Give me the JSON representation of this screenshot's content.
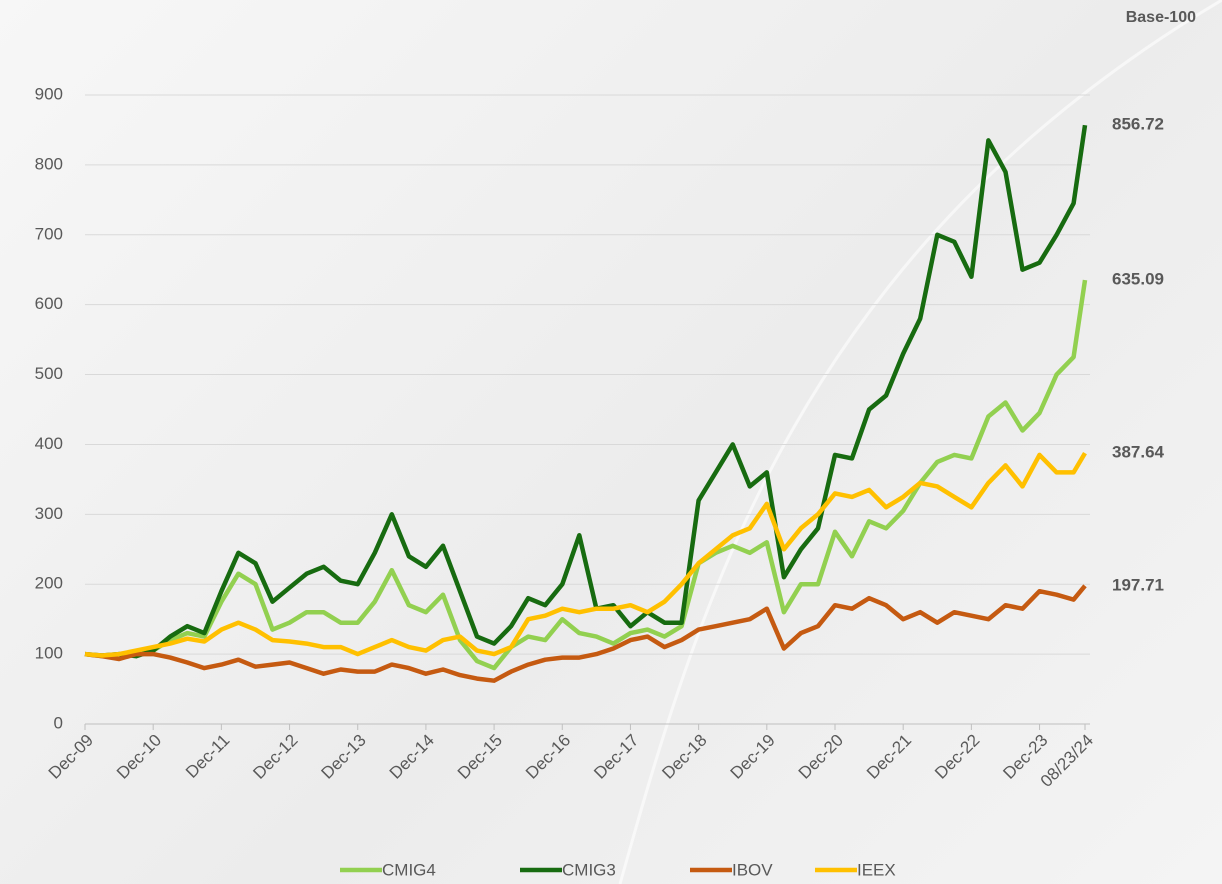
{
  "chart_data": {
    "type": "line",
    "annotations": [
      "Base-100"
    ],
    "x": [
      0,
      3,
      6,
      9,
      12,
      15,
      18,
      21,
      24,
      27,
      30,
      33,
      36,
      39,
      42,
      45,
      48,
      51,
      54,
      57,
      60,
      63,
      66,
      69,
      72,
      75,
      78,
      81,
      84,
      87,
      90,
      93,
      96,
      99,
      102,
      105,
      108,
      111,
      114,
      117,
      120,
      123,
      126,
      129,
      132,
      135,
      138,
      141,
      144,
      147,
      150,
      153,
      156,
      159,
      162,
      165,
      168,
      171,
      174,
      176
    ],
    "series": [
      {
        "name": "CMIG4",
        "color": "#92d050",
        "values": [
          100,
          97,
          100,
          98,
          105,
          120,
          130,
          125,
          175,
          215,
          200,
          135,
          145,
          160,
          160,
          145,
          145,
          175,
          220,
          170,
          160,
          185,
          120,
          90,
          80,
          110,
          125,
          120,
          150,
          130,
          125,
          115,
          130,
          135,
          125,
          140,
          230,
          245,
          255,
          245,
          260,
          160,
          200,
          200,
          275,
          240,
          290,
          280,
          305,
          345,
          375,
          385,
          380,
          440,
          460,
          420,
          445,
          500,
          525,
          635.09
        ]
      },
      {
        "name": "CMIG3",
        "color": "#176b10",
        "values": [
          100,
          98,
          100,
          97,
          105,
          125,
          140,
          130,
          190,
          245,
          230,
          175,
          195,
          215,
          225,
          205,
          200,
          245,
          300,
          240,
          225,
          255,
          190,
          125,
          115,
          140,
          180,
          170,
          200,
          270,
          165,
          170,
          140,
          160,
          145,
          145,
          320,
          360,
          400,
          340,
          360,
          210,
          250,
          280,
          385,
          380,
          450,
          470,
          530,
          580,
          700,
          690,
          640,
          835,
          790,
          650,
          660,
          700,
          745,
          856.72
        ]
      },
      {
        "name": "IBOV",
        "color": "#c55a11",
        "values": [
          100,
          97,
          93,
          100,
          100,
          95,
          88,
          80,
          85,
          92,
          82,
          85,
          88,
          80,
          72,
          78,
          75,
          75,
          85,
          80,
          72,
          78,
          70,
          65,
          62,
          75,
          85,
          92,
          95,
          95,
          100,
          108,
          120,
          125,
          110,
          120,
          135,
          140,
          145,
          150,
          165,
          108,
          130,
          140,
          170,
          165,
          180,
          170,
          150,
          160,
          145,
          160,
          155,
          150,
          170,
          165,
          190,
          185,
          178,
          197.71
        ]
      },
      {
        "name": "IEEX",
        "color": "#ffc000",
        "values": [
          100,
          98,
          100,
          105,
          110,
          115,
          122,
          118,
          135,
          145,
          135,
          120,
          118,
          115,
          110,
          110,
          100,
          110,
          120,
          110,
          105,
          120,
          125,
          105,
          100,
          110,
          150,
          155,
          165,
          160,
          165,
          165,
          170,
          160,
          175,
          200,
          230,
          250,
          270,
          280,
          315,
          250,
          280,
          300,
          330,
          325,
          335,
          310,
          325,
          345,
          340,
          325,
          310,
          345,
          370,
          340,
          385,
          360,
          360,
          387.64
        ]
      }
    ],
    "xlim": [
      0,
      176
    ],
    "xticks": [
      {
        "value": 0,
        "label": "Dec-09"
      },
      {
        "value": 12,
        "label": "Dec-10"
      },
      {
        "value": 24,
        "label": "Dec-11"
      },
      {
        "value": 36,
        "label": "Dec-12"
      },
      {
        "value": 48,
        "label": "Dec-13"
      },
      {
        "value": 60,
        "label": "Dec-14"
      },
      {
        "value": 72,
        "label": "Dec-15"
      },
      {
        "value": 84,
        "label": "Dec-16"
      },
      {
        "value": 96,
        "label": "Dec-17"
      },
      {
        "value": 108,
        "label": "Dec-18"
      },
      {
        "value": 120,
        "label": "Dec-19"
      },
      {
        "value": 132,
        "label": "Dec-20"
      },
      {
        "value": 144,
        "label": "Dec-21"
      },
      {
        "value": 156,
        "label": "Dec-22"
      },
      {
        "value": 168,
        "label": "Dec-23"
      },
      {
        "value": 176,
        "label": "08/23/24"
      }
    ],
    "ylim": [
      0,
      900
    ],
    "yticks": [
      0,
      100,
      200,
      300,
      400,
      500,
      600,
      700,
      800,
      900
    ],
    "grid": true,
    "legend": "bottom"
  }
}
